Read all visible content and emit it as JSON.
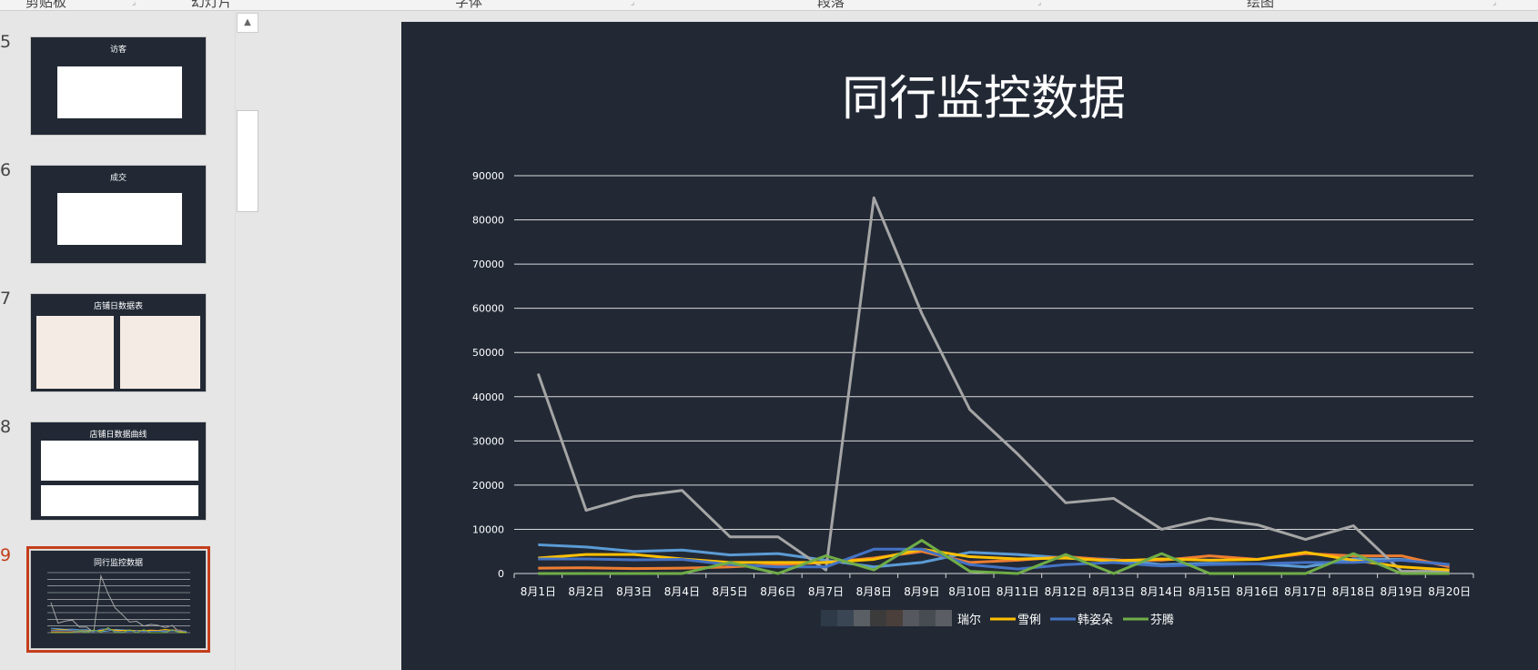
{
  "ribbon": {
    "groups": [
      "剪贴板",
      "幻灯片",
      "字体",
      "段落",
      "绘图"
    ]
  },
  "thumbnails": [
    {
      "number": "5",
      "title": "访客"
    },
    {
      "number": "6",
      "title": "成交"
    },
    {
      "number": "7",
      "title": "店铺日数据表"
    },
    {
      "number": "8",
      "title": "店铺日数据曲线"
    },
    {
      "number": "9",
      "title": "同行监控数据",
      "active": true
    }
  ],
  "slide": {
    "title": "同行监控数据"
  },
  "colors": {
    "background": "#222935",
    "accent": "#c43e1c"
  },
  "chart_data": {
    "type": "line",
    "title": "",
    "categories": [
      "8月1日",
      "8月2日",
      "8月3日",
      "8月4日",
      "8月5日",
      "8月6日",
      "8月7日",
      "8月8日",
      "8月9日",
      "8月10日",
      "8月11日",
      "8月12日",
      "8月13日",
      "8月14日",
      "8月15日",
      "8月16日",
      "8月17日",
      "8月18日",
      "8月19日",
      "8月20日"
    ],
    "ylim": [
      0,
      90000
    ],
    "yticks": [
      0,
      10000,
      20000,
      30000,
      40000,
      50000,
      60000,
      70000,
      80000,
      90000
    ],
    "grid": true,
    "legend": "bottom",
    "legend_note": "first two legend entries are pixelated/obscured",
    "series": [
      {
        "color": "#5b9bd5",
        "values": [
          6500,
          6000,
          5000,
          5300,
          4200,
          4500,
          3000,
          1500,
          2500,
          4800,
          4300,
          3500,
          3200,
          2000,
          2300,
          2200,
          1500,
          3300,
          3200,
          2000
        ]
      },
      {
        "color": "#ed7d31",
        "values": [
          1200,
          1300,
          1100,
          1200,
          1500,
          2000,
          2500,
          3500,
          5000,
          2500,
          3000,
          3800,
          3000,
          3000,
          4000,
          3200,
          4500,
          4000,
          4000,
          1500
        ]
      },
      {
        "name": "瑞尔",
        "color": "#a5a5a5",
        "values": [
          45200,
          14300,
          17400,
          18800,
          8300,
          8300,
          800,
          85000,
          58800,
          37100,
          27000,
          16000,
          17000,
          10000,
          12500,
          11000,
          7700,
          10800,
          500,
          500
        ]
      },
      {
        "name": "雪俐",
        "color": "#ffc000",
        "values": [
          3500,
          4300,
          4300,
          3300,
          2500,
          2500,
          2500,
          3200,
          5500,
          3800,
          3300,
          3500,
          2800,
          3300,
          3000,
          3200,
          4800,
          3000,
          1500,
          800
        ]
      },
      {
        "name": "韩姿朵",
        "color": "#4472c4",
        "values": [
          3300,
          3300,
          3100,
          3200,
          2000,
          1500,
          1500,
          5500,
          5500,
          2000,
          1000,
          2000,
          2500,
          1700,
          2000,
          2200,
          2500,
          2500,
          3000,
          2000
        ]
      },
      {
        "name": "芬腾",
        "color": "#70ad47",
        "values": [
          0,
          0,
          0,
          0,
          2500,
          0,
          4000,
          800,
          7500,
          500,
          0,
          4300,
          0,
          4500,
          0,
          0,
          0,
          4500,
          0,
          0
        ]
      }
    ]
  }
}
